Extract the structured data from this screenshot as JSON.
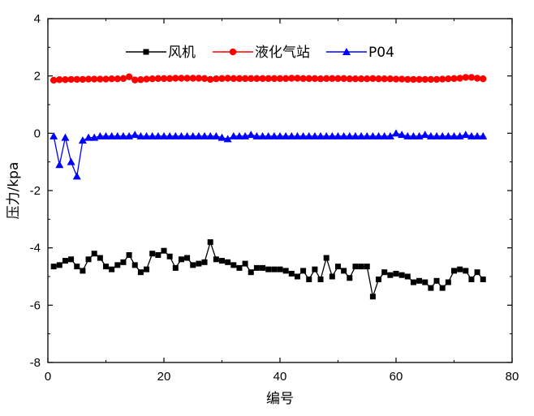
{
  "chart_data": {
    "type": "line",
    "xlabel": "编号",
    "ylabel": "压力/kpa",
    "xlim": [
      0,
      80
    ],
    "ylim": [
      -8,
      4
    ],
    "xticks": [
      "0",
      "20",
      "40",
      "60",
      "80"
    ],
    "yticks": [
      "-8",
      "-6",
      "-4",
      "-2",
      "0",
      "2",
      "4"
    ],
    "grid": false,
    "legend_position": "top",
    "x": [
      1,
      2,
      3,
      4,
      5,
      6,
      7,
      8,
      9,
      10,
      11,
      12,
      13,
      14,
      15,
      16,
      17,
      18,
      19,
      20,
      21,
      22,
      23,
      24,
      25,
      26,
      27,
      28,
      29,
      30,
      31,
      32,
      33,
      34,
      35,
      36,
      37,
      38,
      39,
      40,
      41,
      42,
      43,
      44,
      45,
      46,
      47,
      48,
      49,
      50,
      51,
      52,
      53,
      54,
      55,
      56,
      57,
      58,
      59,
      60,
      61,
      62,
      63,
      64,
      65,
      66,
      67,
      68,
      69,
      70,
      71,
      72,
      73,
      74,
      75
    ],
    "series": [
      {
        "name": "风机",
        "color": "#000000",
        "marker": "square",
        "values": [
          -4.65,
          -4.6,
          -4.45,
          -4.4,
          -4.65,
          -4.8,
          -4.4,
          -4.2,
          -4.35,
          -4.65,
          -4.75,
          -4.6,
          -4.5,
          -4.25,
          -4.6,
          -4.85,
          -4.75,
          -4.2,
          -4.25,
          -4.1,
          -4.3,
          -4.7,
          -4.4,
          -4.35,
          -4.6,
          -4.55,
          -4.5,
          -3.8,
          -4.4,
          -4.45,
          -4.5,
          -4.6,
          -4.7,
          -4.55,
          -4.85,
          -4.7,
          -4.7,
          -4.75,
          -4.75,
          -4.75,
          -4.8,
          -4.9,
          -5.0,
          -4.8,
          -5.1,
          -4.75,
          -5.1,
          -4.35,
          -5.0,
          -4.65,
          -4.8,
          -5.05,
          -4.65,
          -4.65,
          -4.65,
          -5.7,
          -5.1,
          -4.85,
          -4.95,
          -4.9,
          -4.95,
          -5.0,
          -5.2,
          -5.15,
          -5.2,
          -5.4,
          -5.15,
          -5.4,
          -5.2,
          -4.8,
          -4.75,
          -4.8,
          -5.1,
          -4.85,
          -5.1
        ]
      },
      {
        "name": "液化气站",
        "color": "#ff0000",
        "marker": "circle",
        "values": [
          1.85,
          1.87,
          1.87,
          1.88,
          1.88,
          1.88,
          1.89,
          1.89,
          1.89,
          1.89,
          1.9,
          1.9,
          1.91,
          1.97,
          1.86,
          1.87,
          1.89,
          1.9,
          1.91,
          1.91,
          1.91,
          1.92,
          1.92,
          1.92,
          1.92,
          1.92,
          1.91,
          1.88,
          1.9,
          1.91,
          1.92,
          1.91,
          1.91,
          1.91,
          1.91,
          1.91,
          1.91,
          1.91,
          1.91,
          1.91,
          1.91,
          1.92,
          1.92,
          1.91,
          1.91,
          1.91,
          1.9,
          1.91,
          1.91,
          1.91,
          1.91,
          1.9,
          1.9,
          1.9,
          1.9,
          1.91,
          1.9,
          1.9,
          1.9,
          1.89,
          1.89,
          1.88,
          1.88,
          1.88,
          1.88,
          1.88,
          1.88,
          1.89,
          1.9,
          1.91,
          1.92,
          1.95,
          1.95,
          1.92,
          1.9
        ]
      },
      {
        "name": "P04",
        "color": "#0000ff",
        "marker": "triangle",
        "values": [
          -0.1,
          -1.1,
          -0.15,
          -1.0,
          -1.5,
          -0.25,
          -0.15,
          -0.15,
          -0.1,
          -0.1,
          -0.1,
          -0.1,
          -0.1,
          -0.1,
          -0.05,
          -0.1,
          -0.1,
          -0.1,
          -0.1,
          -0.1,
          -0.1,
          -0.1,
          -0.1,
          -0.1,
          -0.1,
          -0.1,
          -0.1,
          -0.1,
          -0.1,
          -0.15,
          -0.2,
          -0.1,
          -0.1,
          -0.1,
          -0.05,
          -0.1,
          -0.1,
          -0.1,
          -0.1,
          -0.1,
          -0.1,
          -0.1,
          -0.1,
          -0.1,
          -0.1,
          -0.1,
          -0.1,
          -0.1,
          -0.1,
          -0.1,
          -0.1,
          -0.1,
          -0.1,
          -0.1,
          -0.1,
          -0.1,
          -0.1,
          -0.1,
          -0.1,
          0.0,
          -0.05,
          -0.1,
          -0.1,
          -0.1,
          -0.05,
          -0.1,
          -0.1,
          -0.1,
          -0.1,
          -0.1,
          -0.1,
          -0.05,
          -0.1,
          -0.1,
          -0.1
        ]
      }
    ]
  }
}
